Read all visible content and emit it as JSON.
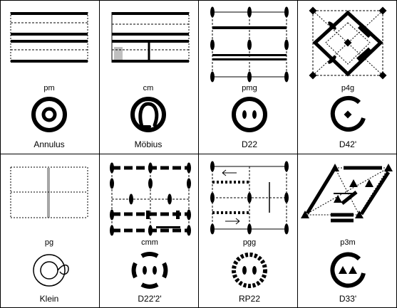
{
  "cells": [
    {
      "id": "pm",
      "symbol": "pm",
      "name": "Annulus"
    },
    {
      "id": "cm",
      "symbol": "cm",
      "name": "Möbius"
    },
    {
      "id": "pmg",
      "symbol": "pmg",
      "name": "D22"
    },
    {
      "id": "p4g",
      "symbol": "p4g",
      "name": "D42'"
    },
    {
      "id": "pg",
      "symbol": "pg",
      "name": "Klein"
    },
    {
      "id": "cmm",
      "symbol": "cmm",
      "name": "D22'2'"
    },
    {
      "id": "pgg",
      "symbol": "pgg",
      "name": "RP22"
    },
    {
      "id": "p3m",
      "symbol": "p3m",
      "name": "D33'"
    }
  ]
}
